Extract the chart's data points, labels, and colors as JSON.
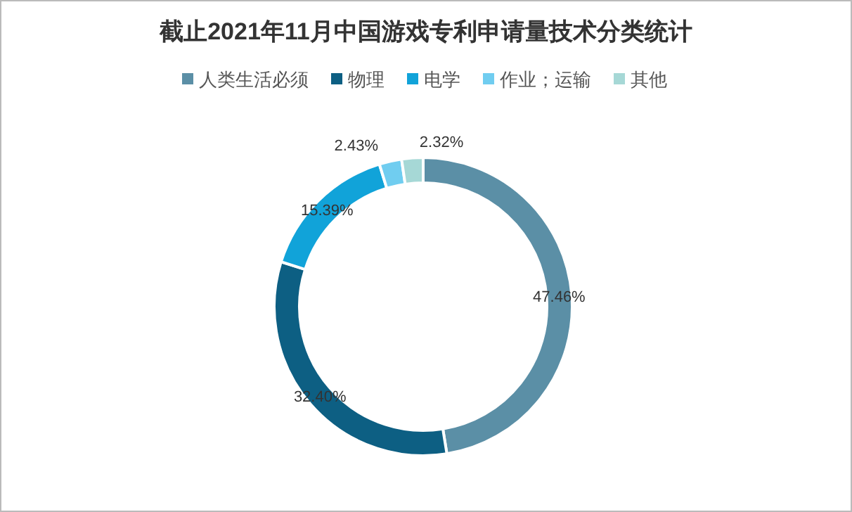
{
  "chart_data": {
    "type": "donut",
    "title": "截止2021年11月中国游戏专利申请量技术分类统计",
    "categories": [
      "人类生活必须",
      "物理",
      "电学",
      "作业；运输",
      "其他"
    ],
    "values": [
      47.46,
      32.4,
      15.39,
      2.43,
      2.32
    ],
    "colors": [
      "#5b8fa6",
      "#0d5f83",
      "#11a3d9",
      "#70cdf0",
      "#a6d8d6"
    ],
    "value_labels": [
      "47.46%",
      "32.40%",
      "15.39%",
      "2.43%",
      "2.32%"
    ],
    "legend": "top"
  }
}
